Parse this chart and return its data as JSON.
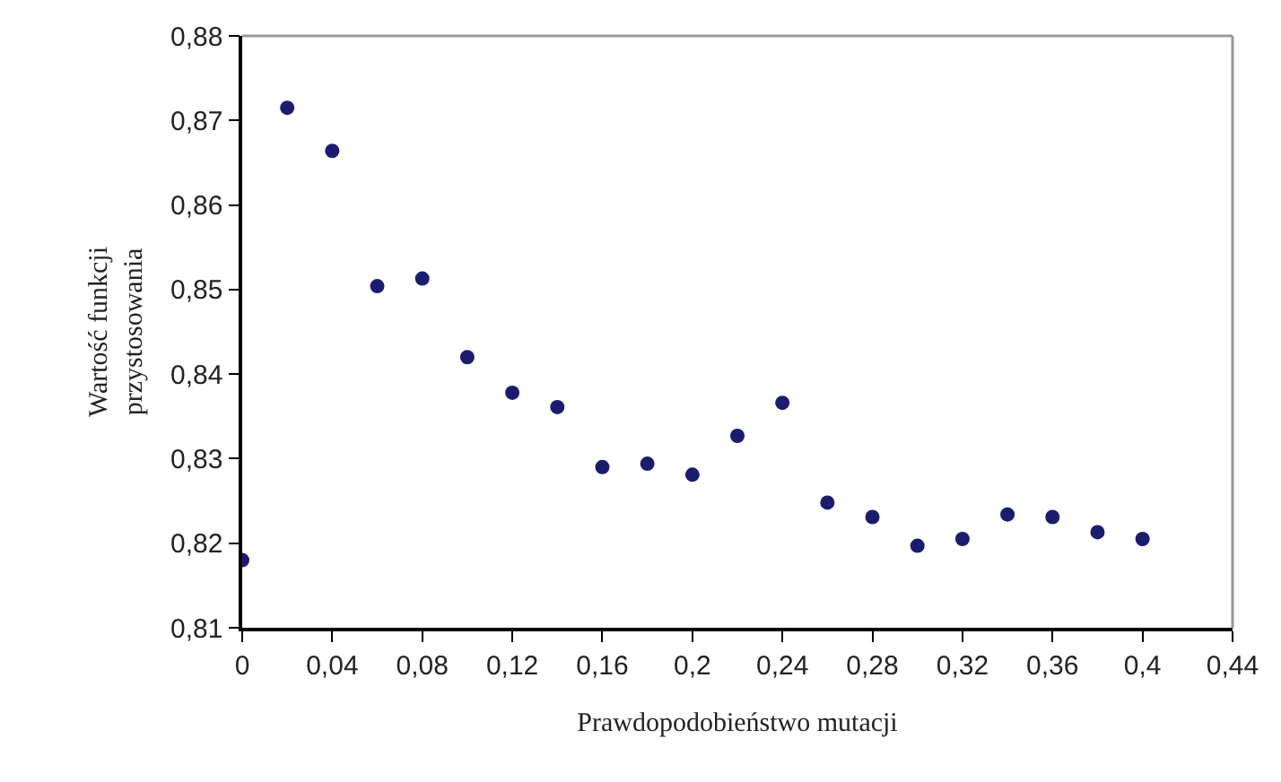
{
  "chart_data": {
    "type": "scatter",
    "xlabel": "Prawdopodobieństwo mutacji",
    "ylabel": "Wartość funkcji\nprzystosowania",
    "x": [
      0,
      0.02,
      0.04,
      0.06,
      0.08,
      0.1,
      0.12,
      0.14,
      0.16,
      0.18,
      0.2,
      0.22,
      0.24,
      0.26,
      0.28,
      0.3,
      0.32,
      0.34,
      0.36,
      0.38,
      0.4
    ],
    "series": [
      {
        "color": "#1c1c6e",
        "values": [
          0.818,
          0.8715,
          0.8664,
          0.8504,
          0.8513,
          0.842,
          0.8378,
          0.8361,
          0.829,
          0.8294,
          0.8281,
          0.8327,
          0.8366,
          0.8248,
          0.8231,
          0.8197,
          0.8205,
          0.8234,
          0.8231,
          0.8213,
          0.8205
        ]
      }
    ],
    "xlim": [
      0,
      0.44
    ],
    "ylim": [
      0.81,
      0.88
    ],
    "xticks": [
      0,
      {
        "value": 0.04,
        "label": "0,04"
      },
      {
        "value": 0.08,
        "label": "0,08"
      },
      {
        "value": 0.12,
        "label": "0,12"
      },
      {
        "value": 0.16,
        "label": "0,16"
      },
      {
        "value": 0.2,
        "label": "0,2"
      },
      {
        "value": 0.24,
        "label": "0,24"
      },
      {
        "value": 0.28,
        "label": "0,28"
      },
      {
        "value": 0.32,
        "label": "0,32"
      },
      {
        "value": 0.36,
        "label": "0,36"
      },
      {
        "value": 0.4,
        "label": "0,4"
      },
      {
        "value": 0.44,
        "label": "0,44"
      }
    ],
    "yticks": [
      {
        "value": 0.81,
        "label": "0,81"
      },
      {
        "value": 0.82,
        "label": "0,82"
      },
      {
        "value": 0.83,
        "label": "0,83"
      },
      {
        "value": 0.84,
        "label": "0,84"
      },
      {
        "value": 0.85,
        "label": "0,85"
      },
      {
        "value": 0.86,
        "label": "0,86"
      },
      {
        "value": 0.87,
        "label": "0,87"
      },
      {
        "value": 0.88,
        "label": "0,88"
      }
    ],
    "marker": "circle"
  }
}
